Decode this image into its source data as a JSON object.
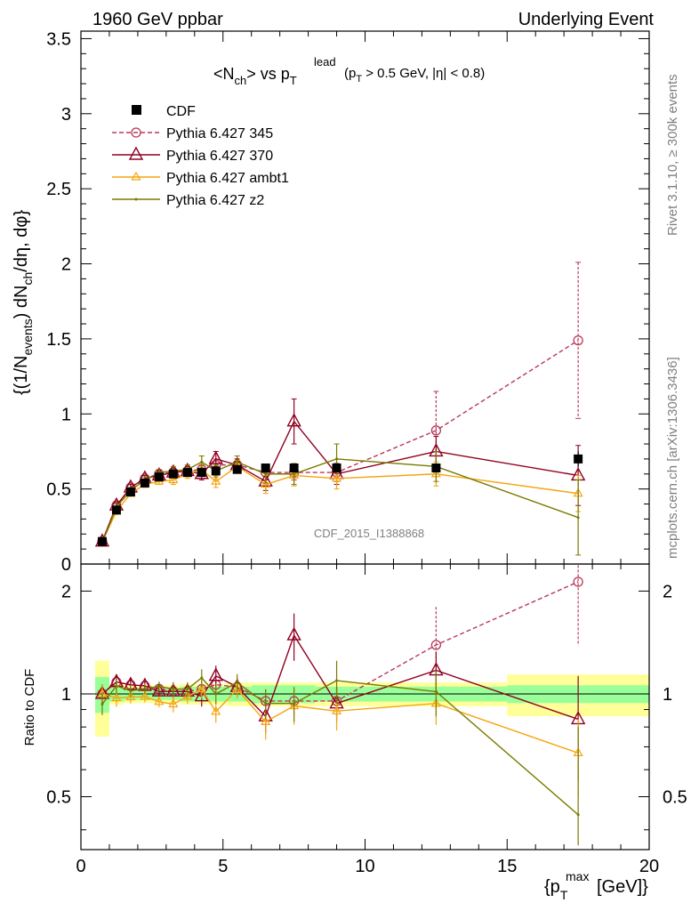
{
  "header": {
    "left": "1960 GeV ppbar",
    "right": "Underlying Event"
  },
  "side": {
    "rivet": "Rivet 3.1.10, ≥ 300k events",
    "mcplots": "mcplots.cern.ch [arXiv:1306.3436]"
  },
  "chart_data": {
    "type": "line",
    "title": "<N_ch> vs p_T^lead (p_T > 0.5 GeV, |η| < 0.8)",
    "watermark": "CDF_2015_I1388868",
    "xlabel": "{p_T^max [GeV]}",
    "ylabel": "{(1/N_events) dN_ch/dη, dφ}",
    "ratio_ylabel": "Ratio to CDF",
    "xlim": [
      0,
      20
    ],
    "ylim": [
      0,
      3.55
    ],
    "ratio_ylim": [
      0.35,
      2.4
    ],
    "x_ticks": [
      "0",
      "5",
      "10",
      "15",
      "20"
    ],
    "y_ticks": [
      "0",
      "0.5",
      "1",
      "1.5",
      "2",
      "2.5",
      "3",
      "3.5"
    ],
    "ratio_ticks": [
      "0.5",
      "1",
      "2"
    ],
    "legend_position": "top-left",
    "reference": {
      "name": "CDF",
      "color": "#000000",
      "x": [
        0.75,
        1.25,
        1.75,
        2.25,
        2.75,
        3.25,
        3.75,
        4.25,
        4.75,
        5.5,
        6.5,
        7.5,
        9.0,
        12.5,
        17.5
      ],
      "y": [
        0.15,
        0.36,
        0.48,
        0.54,
        0.58,
        0.6,
        0.61,
        0.61,
        0.62,
        0.63,
        0.64,
        0.64,
        0.64,
        0.64,
        0.7
      ],
      "err": [
        0.01,
        0.01,
        0.01,
        0.01,
        0.01,
        0.01,
        0.02,
        0.02,
        0.02,
        0.02,
        0.02,
        0.02,
        0.03,
        0.03,
        0.05
      ],
      "band_stat": [
        0.12,
        0.05,
        0.04,
        0.04,
        0.04,
        0.04,
        0.05,
        0.05,
        0.05,
        0.05,
        0.06,
        0.06,
        0.05,
        0.05,
        0.06
      ],
      "band_total": [
        0.25,
        0.07,
        0.06,
        0.06,
        0.06,
        0.06,
        0.07,
        0.07,
        0.07,
        0.08,
        0.08,
        0.08,
        0.08,
        0.08,
        0.14
      ]
    },
    "series": [
      {
        "name": "Pythia 6.427 345",
        "color": "#b7385a",
        "dashed": true,
        "marker": "circle",
        "x": [
          0.75,
          1.25,
          1.75,
          2.25,
          2.75,
          3.25,
          3.75,
          4.25,
          4.75,
          5.5,
          6.5,
          7.5,
          9.0,
          12.5,
          17.5
        ],
        "y": [
          0.15,
          0.39,
          0.51,
          0.57,
          0.6,
          0.61,
          0.62,
          0.63,
          0.66,
          0.66,
          0.61,
          0.61,
          0.61,
          0.89,
          1.49
        ],
        "err": [
          0.01,
          0.02,
          0.02,
          0.02,
          0.02,
          0.02,
          0.03,
          0.03,
          0.04,
          0.03,
          0.05,
          0.05,
          0.06,
          0.26,
          0.52
        ]
      },
      {
        "name": "Pythia 6.427 370",
        "color": "#900020",
        "dashed": false,
        "marker": "triangle",
        "x": [
          0.75,
          1.25,
          1.75,
          2.25,
          2.75,
          3.25,
          3.75,
          4.25,
          4.75,
          5.5,
          6.5,
          7.5,
          9.0,
          12.5,
          17.5
        ],
        "y": [
          0.15,
          0.39,
          0.51,
          0.57,
          0.59,
          0.61,
          0.62,
          0.6,
          0.7,
          0.66,
          0.55,
          0.95,
          0.6,
          0.75,
          0.59
        ],
        "err": [
          0.01,
          0.02,
          0.02,
          0.02,
          0.02,
          0.03,
          0.03,
          0.04,
          0.05,
          0.04,
          0.06,
          0.15,
          0.07,
          0.1,
          0.2
        ]
      },
      {
        "name": "Pythia 6.427 ambt1",
        "color": "#f5a40d",
        "dashed": false,
        "marker": "triangle-small",
        "x": [
          0.75,
          1.25,
          1.75,
          2.25,
          2.75,
          3.25,
          3.75,
          4.25,
          4.75,
          5.5,
          6.5,
          7.5,
          9.0,
          12.5,
          17.5
        ],
        "y": [
          0.15,
          0.35,
          0.47,
          0.53,
          0.55,
          0.56,
          0.6,
          0.63,
          0.55,
          0.65,
          0.53,
          0.59,
          0.57,
          0.6,
          0.47
        ],
        "err": [
          0.01,
          0.02,
          0.02,
          0.02,
          0.02,
          0.03,
          0.03,
          0.04,
          0.04,
          0.04,
          0.06,
          0.07,
          0.07,
          0.08,
          0.12
        ]
      },
      {
        "name": "Pythia 6.427 z2",
        "color": "#7a7a00",
        "dashed": false,
        "marker": "dot",
        "x": [
          0.75,
          1.25,
          1.75,
          2.25,
          2.75,
          3.25,
          3.75,
          4.25,
          4.75,
          5.5,
          6.5,
          7.5,
          9.0,
          12.5,
          17.5
        ],
        "y": [
          0.14,
          0.38,
          0.49,
          0.56,
          0.61,
          0.62,
          0.63,
          0.68,
          0.62,
          0.68,
          0.6,
          0.6,
          0.7,
          0.65,
          0.31
        ],
        "err": [
          0.01,
          0.02,
          0.02,
          0.02,
          0.02,
          0.03,
          0.03,
          0.04,
          0.04,
          0.04,
          0.06,
          0.07,
          0.1,
          0.1,
          0.25
        ]
      }
    ]
  }
}
